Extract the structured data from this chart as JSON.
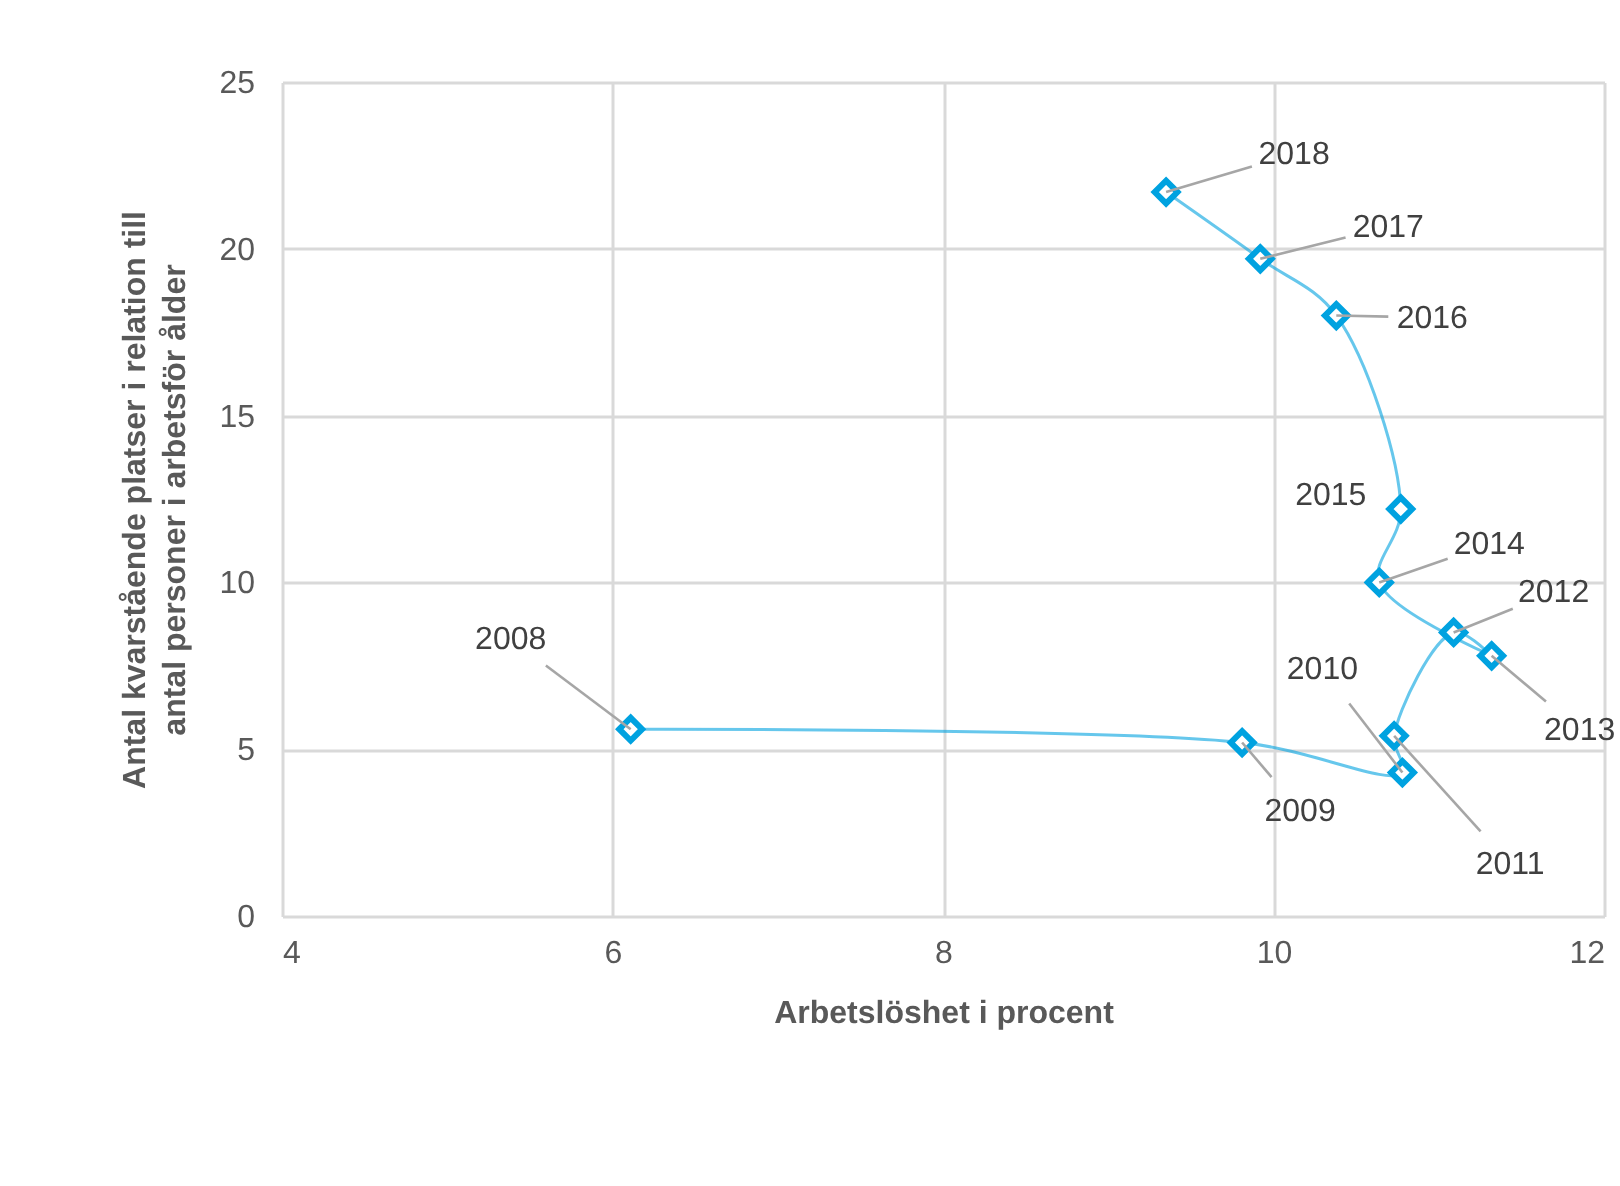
{
  "chart_data": {
    "type": "line",
    "xlabel": "Arbetslöshet i procent",
    "ylabel": "Antal kvarstående platser i relation till antal personer i arbetsför ålder",
    "series": [
      {
        "color": "#00a2e0",
        "x": [
          6.11,
          9.81,
          10.78,
          10.73,
          11.09,
          11.32,
          10.64,
          10.77,
          10.38,
          9.92,
          9.35
        ],
        "values": [
          5.6,
          5.2,
          4.3,
          5.4,
          8.5,
          7.8,
          10.0,
          12.2,
          18.0,
          19.7,
          21.7
        ]
      }
    ],
    "annotations": [
      {
        "text": "2008",
        "x": 6.11,
        "y": 5.6
      },
      {
        "text": "2009",
        "x": 9.81,
        "y": 5.2
      },
      {
        "text": "2010",
        "x": 10.78,
        "y": 4.3
      },
      {
        "text": "2011",
        "x": 10.73,
        "y": 5.4
      },
      {
        "text": "2012",
        "x": 11.09,
        "y": 8.5
      },
      {
        "text": "2013",
        "x": 11.32,
        "y": 7.8
      },
      {
        "text": "2014",
        "x": 10.64,
        "y": 10.0
      },
      {
        "text": "2015",
        "x": 10.77,
        "y": 12.2
      },
      {
        "text": "2016",
        "x": 10.38,
        "y": 18.0
      },
      {
        "text": "2017",
        "x": 9.92,
        "y": 19.7
      },
      {
        "text": "2018",
        "x": 9.35,
        "y": 21.7
      }
    ],
    "xlim": [
      4,
      12
    ],
    "xticks": [
      4,
      6,
      8,
      10,
      12
    ],
    "ylim": [
      0,
      25
    ],
    "yticks": [
      0,
      5,
      10,
      15,
      20,
      25
    ],
    "grid": true,
    "marker": "diamond",
    "line_style": "solid"
  }
}
